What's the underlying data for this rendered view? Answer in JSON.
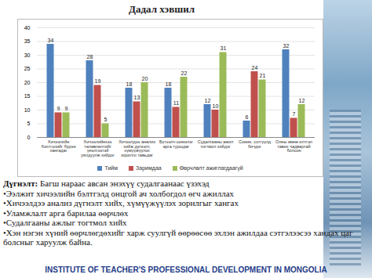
{
  "chart_data": {
    "type": "bar",
    "title": "Дадал хэвшил",
    "categories": [
      "Хичээлийн бэлтгэлийг бүрэн хангадаг",
      "Хичээлийнхээ төлөвлөлтийг үнэлгээтэй уялдуулж хийдэг",
      "Хичээлдээ анализ хийж дүгнэлт, хүмүүжүүлэх зорилго тавьдаг",
      "Бүтээлч шинэлэг арга туршдаг",
      "Судалгааны ажил тогтмол хийдэг",
      "Сонин, сэтгүүлд бичдэг",
      "Олны өмнө илтгэл тавих чадвартай болсон"
    ],
    "series": [
      {
        "name": "Тийм",
        "color": "#4f81bd",
        "values": [
          34,
          28,
          18,
          18,
          12,
          6,
          32
        ]
      },
      {
        "name": "Заримдаа",
        "color": "#c0504d",
        "values": [
          9,
          19,
          13,
          11,
          10,
          24,
          7
        ]
      },
      {
        "name": "Өөрчлөлт ажиглагдаагүй",
        "color": "#9bbb59",
        "values": [
          9,
          5,
          20,
          22,
          31,
          21,
          12
        ]
      }
    ],
    "ylim": [
      0,
      40
    ],
    "yticks": [
      0,
      5,
      10,
      15,
      20,
      25,
      30,
      35,
      40
    ],
    "grid": true,
    "data_labels": true,
    "legend": "bottom"
  },
  "notes": {
    "heading": "Дүгнэлт:",
    "intro": "Багш нараас авсан энэхүү судалгаанаас үзэхэд",
    "bullets": [
      "•Ээлжит хичээлийн бэлтгэлд онцгой ач холбогдол өгч ажиллах",
      "•Хичээлдээ анализ дүгнэлт хийх, хүмүүжүүлэх зорилгыг хангах",
      "•Уламжлалт арга барилаа өөрчлөх",
      "•Судалгааны ажлыг тогтмол хийх",
      "•Хэн нэгэн хүний өөрчлөгдөхийг харж суулгүй өөрөөсөө эхлэн ажилдаа сэтгэлээсээ хандах цаг болсныг харуулж байна."
    ]
  },
  "footer": "INSTITUTE OF TEACHER'S PROFESSIONAL DEVELOPMENT IN MONGOLIA"
}
